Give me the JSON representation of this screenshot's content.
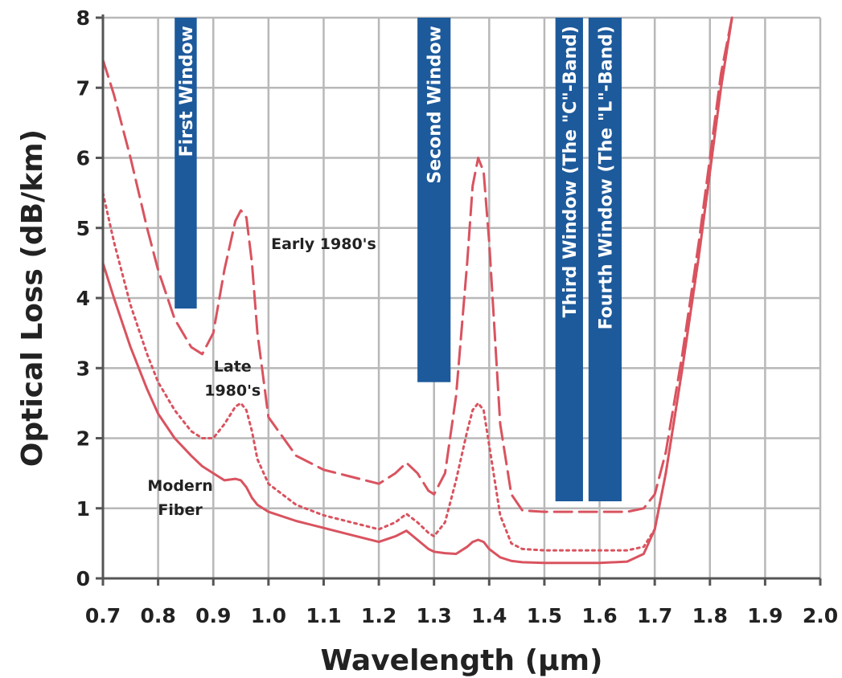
{
  "chart_data": {
    "type": "line",
    "xlabel": "Wavelength (μm)",
    "ylabel": "Optical Loss (dB/km)",
    "xlim": [
      0.7,
      2.0
    ],
    "ylim": [
      0,
      8
    ],
    "x_ticks": [
      "0.7",
      "0.8",
      "0.9",
      "1.0",
      "1.1",
      "1.2",
      "1.3",
      "1.4",
      "1.5",
      "1.6",
      "1.7",
      "1.8",
      "1.9",
      "2.0"
    ],
    "y_ticks": [
      "0",
      "1",
      "2",
      "3",
      "4",
      "5",
      "6",
      "7",
      "8"
    ],
    "grid": true,
    "windows": [
      {
        "label": "First Window",
        "x_range": [
          0.83,
          0.87
        ],
        "y_range": [
          3.85,
          8.0
        ]
      },
      {
        "label": "Second Window",
        "x_range": [
          1.27,
          1.33
        ],
        "y_range": [
          2.8,
          8.0
        ]
      },
      {
        "label": "Third Window (The \"C\"-Band)",
        "x_range": [
          1.52,
          1.57
        ],
        "y_range": [
          1.1,
          8.0
        ]
      },
      {
        "label": "Fourth Window (The \"L\"-Band)",
        "x_range": [
          1.58,
          1.64
        ],
        "y_range": [
          1.1,
          8.0
        ]
      }
    ],
    "series": [
      {
        "style": "dashed",
        "x": [
          0.7,
          0.72,
          0.75,
          0.78,
          0.8,
          0.83,
          0.86,
          0.88,
          0.9,
          0.92,
          0.94,
          0.95,
          0.96,
          0.97,
          0.98,
          1.0,
          1.05,
          1.1,
          1.15,
          1.2,
          1.23,
          1.25,
          1.27,
          1.29,
          1.3,
          1.32,
          1.34,
          1.36,
          1.37,
          1.38,
          1.39,
          1.4,
          1.42,
          1.44,
          1.46,
          1.5,
          1.55,
          1.6,
          1.65,
          1.68,
          1.7,
          1.72,
          1.75,
          1.78,
          1.8,
          1.82,
          1.84
        ],
        "y": [
          7.4,
          6.9,
          6.0,
          5.0,
          4.4,
          3.7,
          3.3,
          3.2,
          3.5,
          4.4,
          5.1,
          5.25,
          5.15,
          4.5,
          3.5,
          2.3,
          1.75,
          1.55,
          1.45,
          1.35,
          1.5,
          1.65,
          1.5,
          1.25,
          1.2,
          1.5,
          2.6,
          4.5,
          5.6,
          6.0,
          5.8,
          4.8,
          2.2,
          1.2,
          0.97,
          0.95,
          0.95,
          0.95,
          0.95,
          1.0,
          1.2,
          1.8,
          3.2,
          4.8,
          6.0,
          7.2,
          8.0
        ]
      },
      {
        "style": "dotted",
        "x": [
          0.7,
          0.72,
          0.75,
          0.78,
          0.8,
          0.83,
          0.86,
          0.88,
          0.9,
          0.92,
          0.94,
          0.95,
          0.96,
          0.97,
          0.98,
          1.0,
          1.05,
          1.1,
          1.15,
          1.2,
          1.23,
          1.25,
          1.27,
          1.29,
          1.3,
          1.32,
          1.34,
          1.36,
          1.37,
          1.38,
          1.39,
          1.4,
          1.42,
          1.44,
          1.46,
          1.5,
          1.55,
          1.6,
          1.65,
          1.68,
          1.7,
          1.72,
          1.75,
          1.78,
          1.8,
          1.82,
          1.84
        ],
        "y": [
          5.5,
          4.8,
          3.9,
          3.2,
          2.8,
          2.4,
          2.1,
          2.0,
          2.0,
          2.2,
          2.45,
          2.5,
          2.4,
          2.1,
          1.7,
          1.35,
          1.05,
          0.9,
          0.8,
          0.7,
          0.8,
          0.92,
          0.8,
          0.65,
          0.6,
          0.8,
          1.4,
          2.1,
          2.4,
          2.5,
          2.4,
          1.9,
          0.9,
          0.5,
          0.42,
          0.4,
          0.4,
          0.4,
          0.4,
          0.45,
          0.7,
          1.5,
          3.0,
          4.6,
          5.8,
          7.0,
          8.0
        ]
      },
      {
        "style": "solid",
        "x": [
          0.7,
          0.72,
          0.75,
          0.78,
          0.8,
          0.83,
          0.86,
          0.88,
          0.9,
          0.92,
          0.94,
          0.95,
          0.96,
          0.97,
          0.98,
          1.0,
          1.05,
          1.1,
          1.15,
          1.2,
          1.23,
          1.25,
          1.27,
          1.29,
          1.3,
          1.32,
          1.34,
          1.36,
          1.37,
          1.38,
          1.39,
          1.4,
          1.42,
          1.44,
          1.46,
          1.5,
          1.55,
          1.6,
          1.65,
          1.68,
          1.7,
          1.72,
          1.75,
          1.78,
          1.8,
          1.82,
          1.84
        ],
        "y": [
          4.5,
          4.0,
          3.3,
          2.7,
          2.35,
          2.0,
          1.75,
          1.6,
          1.5,
          1.4,
          1.42,
          1.4,
          1.3,
          1.15,
          1.05,
          0.95,
          0.82,
          0.72,
          0.62,
          0.52,
          0.6,
          0.68,
          0.55,
          0.42,
          0.38,
          0.36,
          0.35,
          0.45,
          0.52,
          0.55,
          0.52,
          0.42,
          0.3,
          0.25,
          0.23,
          0.22,
          0.22,
          0.22,
          0.24,
          0.35,
          0.7,
          1.5,
          3.0,
          4.6,
          5.8,
          7.0,
          8.0
        ]
      }
    ],
    "annotations": [
      {
        "lines": [
          "Early 1980's"
        ],
        "x": 1.1,
        "y": 4.7
      },
      {
        "lines": [
          "Late",
          "1980's"
        ],
        "x": 0.935,
        "y": 2.95
      },
      {
        "lines": [
          "Modern",
          "Fiber"
        ],
        "x": 0.84,
        "y": 1.25
      }
    ],
    "colors": {
      "curve": "#d9535f",
      "band": "#1d5a9c",
      "grid": "#b8b8b8",
      "axis": "#555555"
    }
  }
}
